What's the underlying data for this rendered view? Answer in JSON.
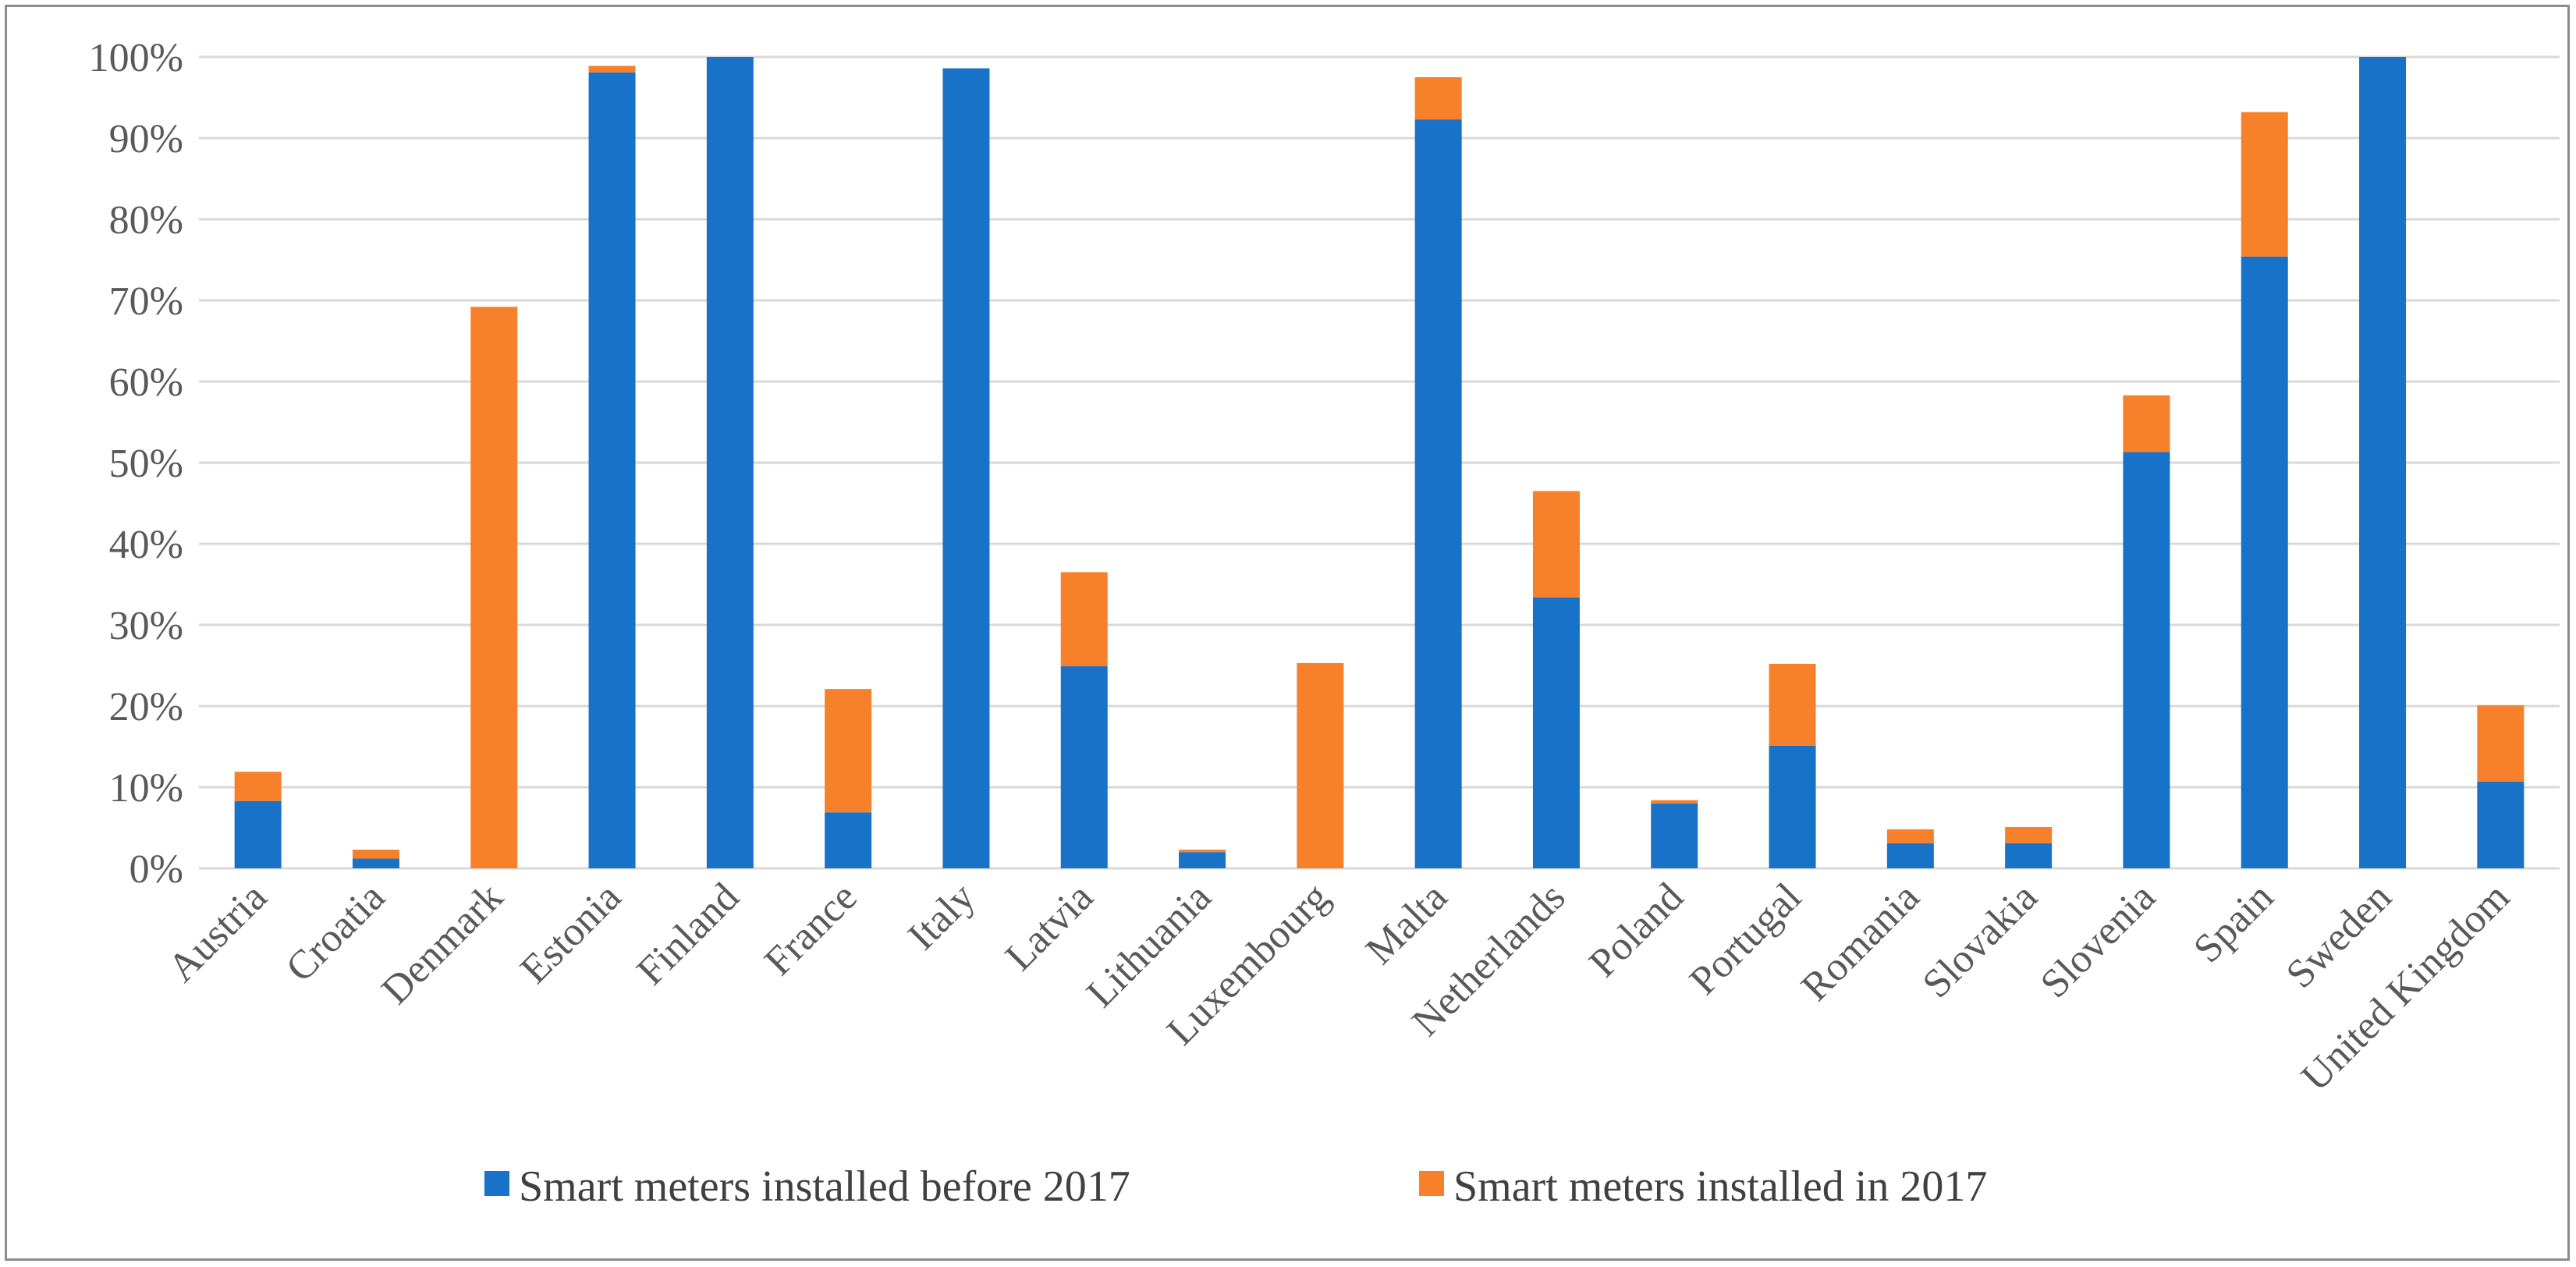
{
  "chart_data": {
    "type": "bar",
    "stacked": true,
    "title": "",
    "xlabel": "",
    "ylabel": "",
    "ylim": [
      0,
      100
    ],
    "y_ticks": [
      "0%",
      "10%",
      "20%",
      "30%",
      "40%",
      "50%",
      "60%",
      "70%",
      "80%",
      "90%",
      "100%"
    ],
    "grid": true,
    "legend_position": "bottom",
    "categories": [
      "Austria",
      "Croatia",
      "Denmark",
      "Estonia",
      "Finland",
      "France",
      "Italy",
      "Latvia",
      "Lithuania",
      "Luxembourg",
      "Malta",
      "Netherlands",
      "Poland",
      "Portugal",
      "Romania",
      "Slovakia",
      "Slovenia",
      "Spain",
      "Sweden",
      "United Kingdom"
    ],
    "series": [
      {
        "name": "Smart meters installed before 2017",
        "color": "#1873c8",
        "values": [
          8.3,
          1.2,
          0,
          98.1,
          100,
          6.9,
          98.6,
          24.9,
          2.0,
          0,
          92.3,
          33.4,
          8.0,
          15.1,
          3.1,
          3.1,
          51.3,
          75.4,
          100,
          10.7
        ]
      },
      {
        "name": "Smart meters installed in 2017",
        "color": "#f7802a",
        "values": [
          3.6,
          1.1,
          69.2,
          0.8,
          0,
          15.2,
          0,
          11.6,
          0.3,
          25.3,
          5.2,
          13.1,
          0.4,
          10.1,
          1.7,
          2.0,
          7.0,
          17.8,
          0,
          9.4
        ]
      }
    ]
  }
}
